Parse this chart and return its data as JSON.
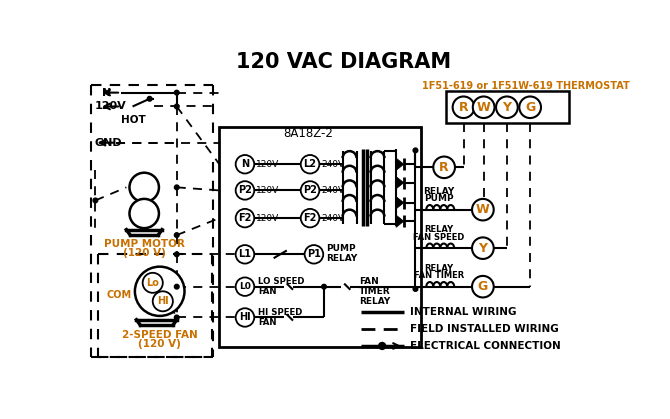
{
  "title": "120 VAC DIAGRAM",
  "bg_color": "#ffffff",
  "lc": "#000000",
  "oc": "#c87000",
  "thermostat_label": "1F51-619 or 1F51W-619 THERMOSTAT",
  "thermostat_terminals": [
    "R",
    "W",
    "Y",
    "G"
  ],
  "board_label": "8A18Z-2",
  "pump_motor_label1": "PUMP MOTOR",
  "pump_motor_label2": "(120 V)",
  "fan_label1": "2-SPEED FAN",
  "fan_label2": "(120 V)",
  "legend_internal": "INTERNAL WIRING",
  "legend_field": "FIELD INSTALLED WIRING",
  "legend_elec": "ELECTRICAL CONNECTION",
  "figsize": [
    6.7,
    4.19
  ],
  "dpi": 100
}
